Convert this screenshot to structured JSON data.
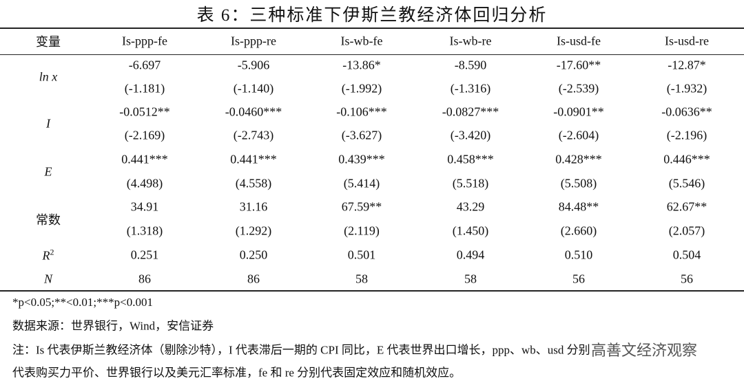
{
  "title": "表 6：三种标准下伊斯兰教经济体回归分析",
  "table": {
    "header": [
      "变量",
      "Is-ppp-fe",
      "Is-ppp-re",
      "Is-wb-fe",
      "Is-wb-re",
      "Is-usd-fe",
      "Is-usd-re"
    ],
    "rows": [
      {
        "label": "ln x",
        "coef": [
          "-6.697",
          "-5.906",
          "-13.86*",
          "-8.590",
          "-17.60**",
          "-12.87*"
        ],
        "t": [
          "(-1.181)",
          "(-1.140)",
          "(-1.992)",
          "(-1.316)",
          "(-2.539)",
          "(-1.932)"
        ]
      },
      {
        "label": "I",
        "coef": [
          "-0.0512**",
          "-0.0460***",
          "-0.106***",
          "-0.0827***",
          "-0.0901**",
          "-0.0636**"
        ],
        "t": [
          "(-2.169)",
          "(-2.743)",
          "(-3.627)",
          "(-3.420)",
          "(-2.604)",
          "(-2.196)"
        ]
      },
      {
        "label": "E",
        "coef": [
          "0.441***",
          "0.441***",
          "0.439***",
          "0.458***",
          "0.428***",
          "0.446***"
        ],
        "t": [
          "(4.498)",
          "(4.558)",
          "(5.414)",
          "(5.518)",
          "(5.508)",
          "(5.546)"
        ]
      },
      {
        "label": "常数",
        "coef": [
          "34.91",
          "31.16",
          "67.59**",
          "43.29",
          "84.48**",
          "62.67**"
        ],
        "t": [
          "(1.318)",
          "(1.292)",
          "(2.119)",
          "(1.450)",
          "(2.660)",
          "(2.057)"
        ]
      }
    ],
    "r2": {
      "label": "R",
      "sup": "2",
      "values": [
        "0.251",
        "0.250",
        "0.501",
        "0.494",
        "0.510",
        "0.504"
      ]
    },
    "n": {
      "label": "N",
      "values": [
        "86",
        "86",
        "58",
        "58",
        "56",
        "56"
      ]
    }
  },
  "notes": [
    "*p<0.05;**<0.01;***p<0.001",
    "数据来源：世界银行，Wind，安信证券",
    "注：Is 代表伊斯兰教经济体（剔除沙特），I 代表滞后一期的 CPI 同比，E 代表世界出口增长，ppp、wb、usd 分别",
    "代表购买力平价、世界银行以及美元汇率标准，fe 和 re 分别代表固定效应和随机效应。"
  ],
  "watermark": "高善文经济观察"
}
